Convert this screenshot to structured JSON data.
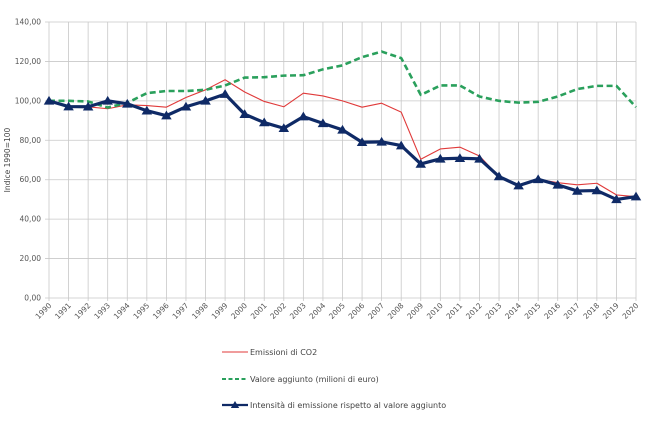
{
  "chart_data": {
    "type": "line",
    "title": "",
    "xlabel": "",
    "ylabel": "Indice 1990=100",
    "ylim": [
      0,
      140
    ],
    "yticks": [
      0,
      20,
      40,
      60,
      80,
      100,
      120,
      140
    ],
    "ytick_labels": [
      "0,00",
      "20,00",
      "40,00",
      "60,00",
      "80,00",
      "100,00",
      "120,00",
      "140,00"
    ],
    "grid": true,
    "legend_position": "bottom-center",
    "categories": [
      "1990",
      "1991",
      "1992",
      "1993",
      "1994",
      "1995",
      "1996",
      "1997",
      "1998",
      "1999",
      "2000",
      "2001",
      "2002",
      "2003",
      "2004",
      "2005",
      "2006",
      "2007",
      "2008",
      "2009",
      "2010",
      "2011",
      "2012",
      "2013",
      "2014",
      "2015",
      "2016",
      "2017",
      "2018",
      "2019",
      "2020"
    ],
    "series": [
      {
        "name": "Emissioni di CO2",
        "color": "#e03a3a",
        "style": "solid",
        "values": [
          100,
          97,
          97,
          96,
          98,
          97.6,
          96.8,
          101.7,
          105.6,
          110.7,
          104.5,
          99.7,
          97,
          103.9,
          102.5,
          100,
          96.8,
          98.8,
          94.3,
          70.4,
          75.6,
          76.5,
          72,
          61.6,
          57.5,
          60.2,
          58.5,
          57.4,
          58.2,
          52.3,
          51.4
        ]
      },
      {
        "name": "Valore aggiunto (milioni di euro)",
        "color": "#2aa05c",
        "style": "dashed",
        "values": [
          100,
          100,
          99.7,
          96.6,
          99,
          103.9,
          105,
          105,
          105.6,
          107.8,
          111.8,
          112,
          112.8,
          113,
          116,
          118,
          122.2,
          125,
          121.7,
          103,
          107.8,
          107.8,
          102.2,
          100,
          99.1,
          99.5,
          102.2,
          106,
          107.6,
          107.6,
          96.8
        ]
      },
      {
        "name": "Intensità di emissione rispetto al valore aggiunto",
        "color": "#0f2a66",
        "style": "solid-triangle-markers",
        "values": [
          100,
          97.1,
          97,
          100,
          98.5,
          95,
          92.5,
          97,
          100,
          103.4,
          93.2,
          89,
          86.1,
          92,
          88.6,
          85.3,
          79,
          79.2,
          77.3,
          68,
          70.6,
          70.9,
          70.6,
          61.6,
          57,
          60.2,
          57.4,
          54.3,
          54.5,
          50,
          51.4
        ]
      }
    ]
  }
}
